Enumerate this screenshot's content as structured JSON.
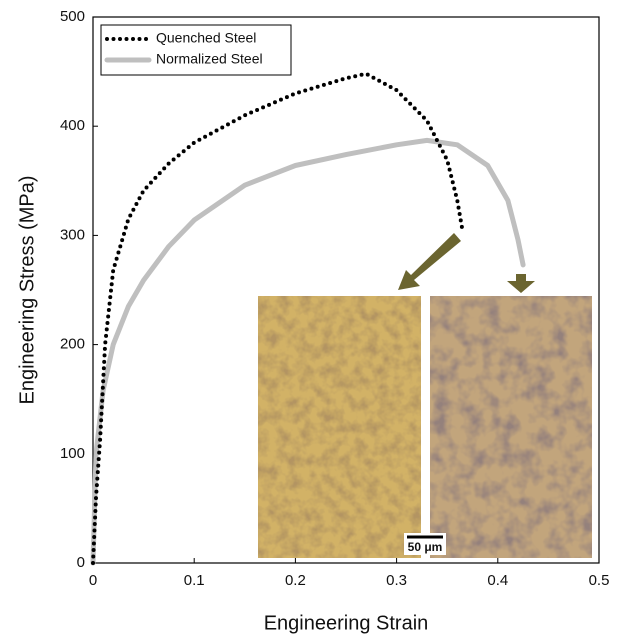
{
  "chart_data": {
    "type": "line",
    "x_label": "Engineering Strain",
    "y_label": "Engineering Stress (MPa)",
    "xlim": [
      0,
      0.5
    ],
    "xticks": [
      0,
      0.1,
      0.2,
      0.3,
      0.4,
      0.5
    ],
    "ylim": [
      0,
      500
    ],
    "yticks": [
      0,
      100,
      200,
      300,
      400,
      500
    ],
    "grid": false,
    "legend": "upper left",
    "scale_bar_label": "50 μm",
    "series": [
      {
        "name": "Quenched Steel",
        "color": "#000000",
        "style": "dotted",
        "x": [
          0,
          0.003,
          0.007,
          0.012,
          0.02,
          0.035,
          0.05,
          0.075,
          0.1,
          0.15,
          0.2,
          0.25,
          0.27,
          0.3,
          0.33,
          0.35,
          0.36,
          0.365
        ],
        "y": [
          0,
          60,
          113,
          200,
          268,
          315,
          341,
          366,
          385,
          410,
          430,
          444,
          448,
          433,
          405,
          369,
          332,
          305
        ]
      },
      {
        "name": "Normalized Steel",
        "color": "#bfbfbf",
        "style": "solid",
        "x": [
          0,
          0.003,
          0.01,
          0.02,
          0.035,
          0.05,
          0.075,
          0.1,
          0.15,
          0.2,
          0.25,
          0.3,
          0.33,
          0.36,
          0.39,
          0.41,
          0.42,
          0.425
        ],
        "y": [
          0,
          100,
          158,
          200,
          235,
          259,
          290,
          314,
          346,
          364,
          374,
          383,
          387,
          383,
          364,
          332,
          296,
          273
        ]
      }
    ]
  }
}
